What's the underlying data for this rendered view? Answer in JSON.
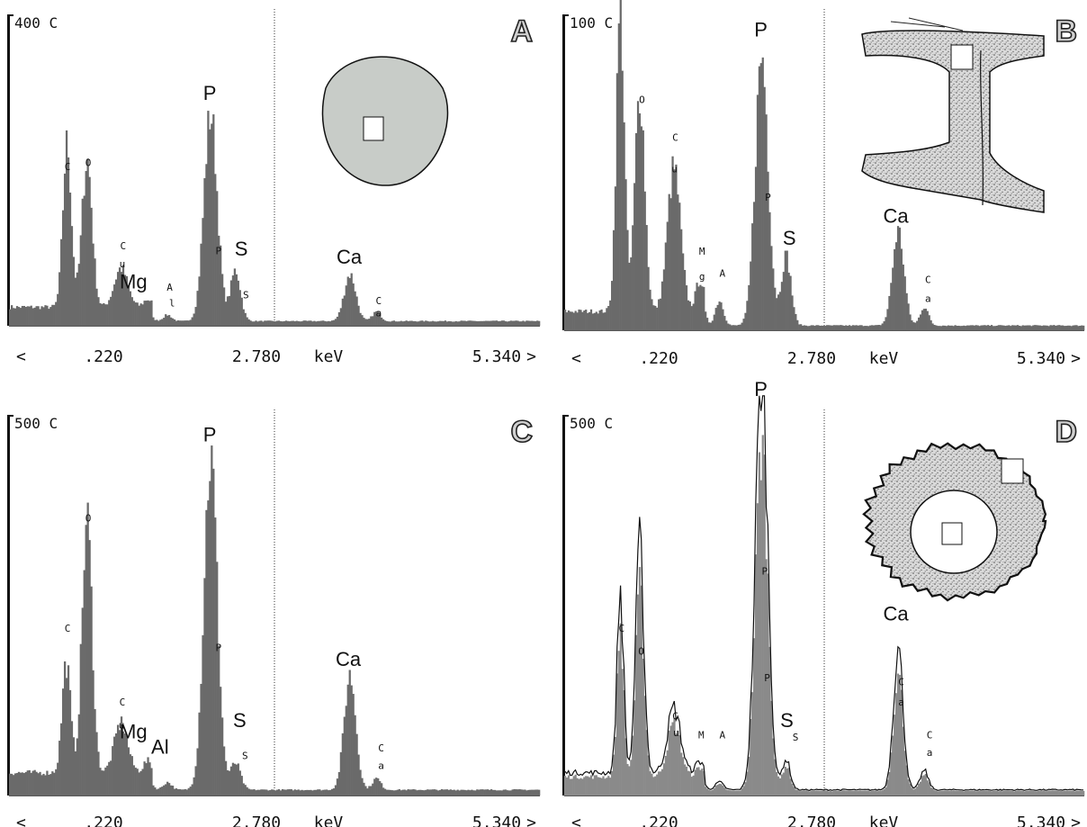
{
  "chart_data": [
    {
      "type": "bar",
      "panel_letter": "A",
      "count_label": "400 C",
      "scale_max": 400,
      "axis": {
        "left": "<",
        "t1": ".220",
        "t2": "2.780",
        "unit": "keV",
        "t3": "5.340",
        "right": ">"
      },
      "x_range_keV": [
        -0.42,
        5.98
      ],
      "peaks": [
        {
          "x": 0.28,
          "height": 210,
          "width": 0.05,
          "label": "C"
        },
        {
          "x": 0.52,
          "height": 190,
          "width": 0.06,
          "label": "O"
        },
        {
          "x": 0.93,
          "height": 50,
          "width": 0.08,
          "label": "Cu"
        },
        {
          "x": 1.25,
          "height": 10,
          "width": 0.05,
          "label": "Mg"
        },
        {
          "x": 1.49,
          "height": 8,
          "width": 0.05,
          "label": "Al"
        },
        {
          "x": 2.01,
          "height": 265,
          "width": 0.08,
          "label": "P"
        },
        {
          "x": 2.31,
          "height": 65,
          "width": 0.06,
          "label": "S"
        },
        {
          "x": 3.69,
          "height": 60,
          "width": 0.07,
          "label": "Ca"
        },
        {
          "x": 4.01,
          "height": 12,
          "width": 0.05
        }
      ],
      "labels": [
        {
          "text": "C",
          "x": 0.25,
          "y": 200,
          "style": "mono"
        },
        {
          "text": "O",
          "x": 0.5,
          "y": 205,
          "style": "mono"
        },
        {
          "text": "C",
          "x": 0.92,
          "y": 98,
          "style": "mono"
        },
        {
          "text": "u",
          "x": 0.91,
          "y": 75,
          "style": "mono"
        },
        {
          "text": "Mg",
          "x": 1.08,
          "y": 48,
          "style": "sans"
        },
        {
          "text": "A",
          "x": 1.48,
          "y": 45,
          "style": "mono"
        },
        {
          "text": "l",
          "x": 1.51,
          "y": 25,
          "style": "mono"
        },
        {
          "text": "P",
          "x": 2.0,
          "y": 290,
          "style": "sans"
        },
        {
          "text": "P",
          "x": 2.07,
          "y": 92,
          "style": "mono"
        },
        {
          "text": "S",
          "x": 2.38,
          "y": 90,
          "style": "sans"
        },
        {
          "text": "S",
          "x": 2.4,
          "y": 35,
          "style": "mono"
        },
        {
          "text": "Ca",
          "x": 3.68,
          "y": 80,
          "style": "sans"
        },
        {
          "text": "C",
          "x": 4.0,
          "y": 28,
          "style": "mono"
        },
        {
          "text": "a",
          "x": 4.0,
          "y": 12,
          "style": "mono"
        }
      ],
      "inset": "round-grain"
    },
    {
      "type": "bar",
      "panel_letter": "B",
      "count_label": "100 C",
      "scale_max": 100,
      "axis": {
        "left": "<",
        "t1": ".220",
        "t2": "2.780",
        "unit": "keV",
        "t3": "5.340",
        "right": ">"
      },
      "x_range_keV": [
        -0.42,
        5.98
      ],
      "peaks": [
        {
          "x": 0.27,
          "height": 95,
          "width": 0.05,
          "label": "C"
        },
        {
          "x": 0.51,
          "height": 70,
          "width": 0.06,
          "label": "O"
        },
        {
          "x": 0.93,
          "height": 45,
          "width": 0.08,
          "label": "Cu"
        },
        {
          "x": 1.25,
          "height": 10,
          "width": 0.05,
          "label": "Mg"
        },
        {
          "x": 1.49,
          "height": 8,
          "width": 0.05,
          "label": "Al"
        },
        {
          "x": 2.01,
          "height": 85,
          "width": 0.08,
          "label": "P"
        },
        {
          "x": 2.31,
          "height": 22,
          "width": 0.06,
          "label": "S"
        },
        {
          "x": 3.69,
          "height": 30,
          "width": 0.07,
          "label": "Ca"
        },
        {
          "x": 4.01,
          "height": 6,
          "width": 0.05
        }
      ],
      "labels": [
        {
          "text": "O",
          "x": 0.5,
          "y": 72,
          "style": "mono"
        },
        {
          "text": "C",
          "x": 0.91,
          "y": 60,
          "style": "mono"
        },
        {
          "text": "u",
          "x": 0.9,
          "y": 50,
          "style": "mono"
        },
        {
          "text": "M",
          "x": 1.24,
          "y": 24,
          "style": "mono"
        },
        {
          "text": "g",
          "x": 1.24,
          "y": 16,
          "style": "mono"
        },
        {
          "text": "A",
          "x": 1.49,
          "y": 17,
          "style": "mono"
        },
        {
          "text": "P",
          "x": 2.0,
          "y": 93,
          "style": "sans"
        },
        {
          "text": "P",
          "x": 2.05,
          "y": 41,
          "style": "mono"
        },
        {
          "text": "S",
          "x": 2.35,
          "y": 27,
          "style": "sans"
        },
        {
          "text": "Ca",
          "x": 3.66,
          "y": 34,
          "style": "sans"
        },
        {
          "text": "C",
          "x": 4.02,
          "y": 15,
          "style": "mono"
        },
        {
          "text": "a",
          "x": 4.02,
          "y": 9,
          "style": "mono"
        }
      ],
      "inset": "tissue-section"
    },
    {
      "type": "bar",
      "panel_letter": "C",
      "count_label": "500 C",
      "scale_max": 500,
      "axis": {
        "left": "<",
        "t1": ".220",
        "t2": "2.780",
        "unit": "keV",
        "t3": "5.340",
        "right": ">"
      },
      "x_range_keV": [
        -0.42,
        5.98
      ],
      "peaks": [
        {
          "x": 0.27,
          "height": 145,
          "width": 0.05,
          "label": "C"
        },
        {
          "x": 0.52,
          "height": 330,
          "width": 0.06,
          "label": "O"
        },
        {
          "x": 0.93,
          "height": 65,
          "width": 0.08,
          "label": "Cu"
        },
        {
          "x": 1.25,
          "height": 15,
          "width": 0.05,
          "label": "Mg"
        },
        {
          "x": 1.49,
          "height": 10,
          "width": 0.05,
          "label": "Al"
        },
        {
          "x": 2.01,
          "height": 435,
          "width": 0.08,
          "label": "P"
        },
        {
          "x": 2.31,
          "height": 35,
          "width": 0.06,
          "label": "S"
        },
        {
          "x": 3.69,
          "height": 150,
          "width": 0.07,
          "label": "Ca"
        },
        {
          "x": 4.01,
          "height": 15,
          "width": 0.05
        }
      ],
      "labels": [
        {
          "text": "C",
          "x": 0.25,
          "y": 215,
          "style": "mono"
        },
        {
          "text": "O",
          "x": 0.5,
          "y": 360,
          "style": "mono"
        },
        {
          "text": "C",
          "x": 0.91,
          "y": 118,
          "style": "mono"
        },
        {
          "text": "u",
          "x": 0.9,
          "y": 88,
          "style": "mono"
        },
        {
          "text": "Mg",
          "x": 1.08,
          "y": 75,
          "style": "sans"
        },
        {
          "text": "Al",
          "x": 1.4,
          "y": 55,
          "style": "sans"
        },
        {
          "text": "P",
          "x": 2.0,
          "y": 465,
          "style": "sans"
        },
        {
          "text": "P",
          "x": 2.07,
          "y": 190,
          "style": "mono"
        },
        {
          "text": "S",
          "x": 2.36,
          "y": 90,
          "style": "sans"
        },
        {
          "text": "S",
          "x": 2.39,
          "y": 48,
          "style": "mono"
        },
        {
          "text": "Ca",
          "x": 3.67,
          "y": 170,
          "style": "sans"
        },
        {
          "text": "C",
          "x": 4.03,
          "y": 58,
          "style": "mono"
        },
        {
          "text": "a",
          "x": 4.03,
          "y": 35,
          "style": "mono"
        }
      ],
      "inset": null
    },
    {
      "type": "line",
      "panel_letter": "D",
      "count_label": "500 C",
      "scale_max": 500,
      "axis": {
        "left": "<",
        "t1": ".220",
        "t2": "2.780",
        "unit": "keV",
        "t3": "5.340",
        "right": ">"
      },
      "x_range_keV": [
        -0.42,
        5.98
      ],
      "peaks": [
        {
          "x": 0.27,
          "height": 240,
          "width": 0.04,
          "label": "C"
        },
        {
          "x": 0.51,
          "height": 300,
          "width": 0.05,
          "label": "O"
        },
        {
          "x": 0.93,
          "height": 85,
          "width": 0.08,
          "label": "Cu"
        },
        {
          "x": 1.25,
          "height": 15,
          "width": 0.05,
          "label": "Mg"
        },
        {
          "x": 1.49,
          "height": 10,
          "width": 0.05,
          "label": "Al"
        },
        {
          "x": 2.01,
          "height": 555,
          "width": 0.075,
          "label": "P"
        },
        {
          "x": 2.31,
          "height": 40,
          "width": 0.05,
          "label": "S"
        },
        {
          "x": 3.69,
          "height": 185,
          "width": 0.06,
          "label": "Ca"
        },
        {
          "x": 4.01,
          "height": 25,
          "width": 0.05
        }
      ],
      "labels": [
        {
          "text": "C",
          "x": 0.25,
          "y": 215,
          "style": "mono"
        },
        {
          "text": "O",
          "x": 0.49,
          "y": 185,
          "style": "mono"
        },
        {
          "text": "C",
          "x": 0.91,
          "y": 100,
          "style": "mono"
        },
        {
          "text": "u",
          "x": 0.92,
          "y": 78,
          "style": "mono"
        },
        {
          "text": "M",
          "x": 1.23,
          "y": 75,
          "style": "mono"
        },
        {
          "text": "A",
          "x": 1.49,
          "y": 75,
          "style": "mono"
        },
        {
          "text": "P",
          "x": 2.0,
          "y": 590,
          "style": "sans"
        },
        {
          "text": "P",
          "x": 2.01,
          "y": 290,
          "style": "mono"
        },
        {
          "text": "P",
          "x": 2.04,
          "y": 150,
          "style": "mono"
        },
        {
          "text": "S",
          "x": 2.32,
          "y": 90,
          "style": "sans"
        },
        {
          "text": "S",
          "x": 2.39,
          "y": 72,
          "style": "mono"
        },
        {
          "text": "Ca",
          "x": 3.66,
          "y": 230,
          "style": "sans"
        },
        {
          "text": "C",
          "x": 3.69,
          "y": 145,
          "style": "mono"
        },
        {
          "text": "a",
          "x": 3.69,
          "y": 118,
          "style": "mono"
        },
        {
          "text": "C",
          "x": 4.04,
          "y": 75,
          "style": "mono"
        },
        {
          "text": "a",
          "x": 4.04,
          "y": 52,
          "style": "mono"
        }
      ],
      "inset": "ring-grain"
    }
  ]
}
